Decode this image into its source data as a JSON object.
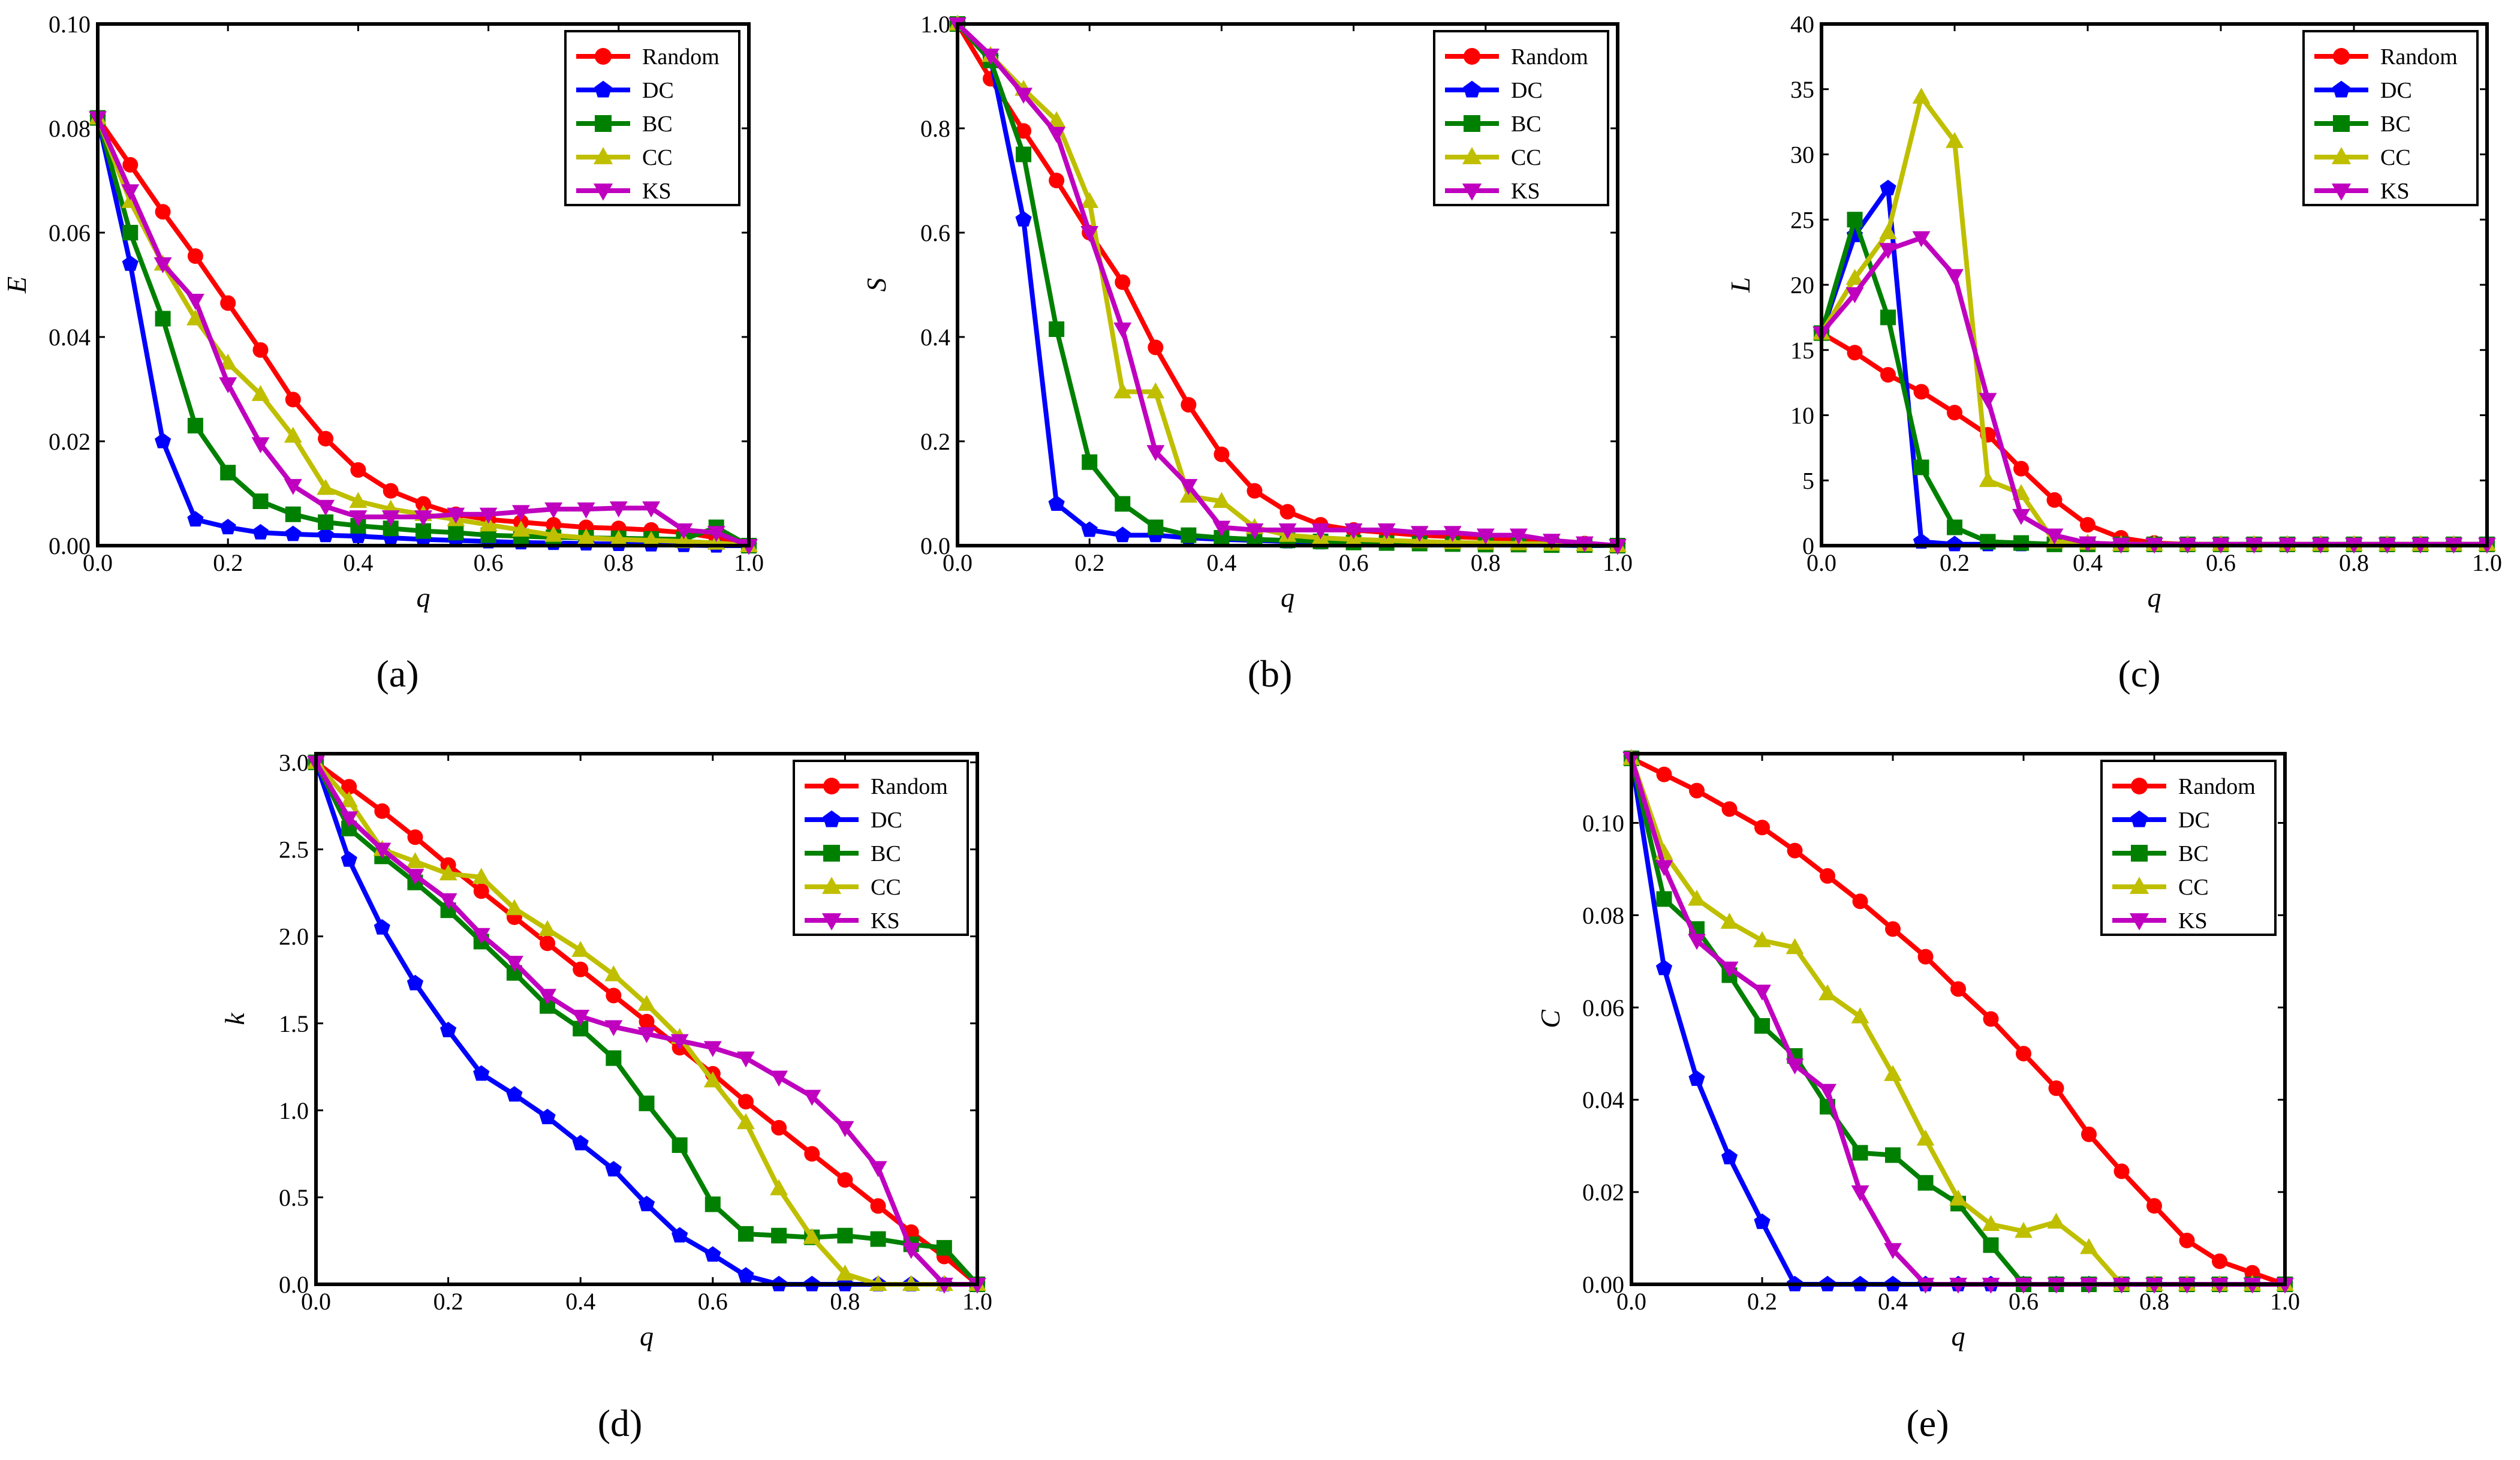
{
  "figure": {
    "series_styles": [
      {
        "name": "Random",
        "color": "#ff0000",
        "marker": "circle"
      },
      {
        "name": "DC",
        "color": "#0000ff",
        "marker": "pentagon"
      },
      {
        "name": "BC",
        "color": "#008000",
        "marker": "square"
      },
      {
        "name": "CC",
        "color": "#bfbf00",
        "marker": "triangle-up"
      },
      {
        "name": "KS",
        "color": "#bf00bf",
        "marker": "triangle-down"
      }
    ]
  },
  "chart_data": [
    {
      "type": "line",
      "panel_label": "(a)",
      "xlabel": "q",
      "ylabel": "E",
      "xlim": [
        0,
        1.0
      ],
      "ylim": [
        0,
        0.1
      ],
      "xticks": [
        "0.0",
        "0.2",
        "0.4",
        "0.6",
        "0.8",
        "1.0"
      ],
      "yticks": [
        "0.00",
        "0.02",
        "0.04",
        "0.06",
        "0.08",
        "0.10"
      ],
      "x": [
        0,
        0.05,
        0.1,
        0.15,
        0.2,
        0.25,
        0.3,
        0.35,
        0.4,
        0.45,
        0.5,
        0.55,
        0.6,
        0.65,
        0.7,
        0.75,
        0.8,
        0.85,
        0.9,
        0.95,
        1.0
      ],
      "series": [
        {
          "name": "Random",
          "values": [
            0.082,
            0.073,
            0.064,
            0.0555,
            0.0465,
            0.0375,
            0.028,
            0.0205,
            0.0145,
            0.0105,
            0.008,
            0.006,
            0.005,
            0.0045,
            0.004,
            0.0035,
            0.0033,
            0.003,
            0.0025,
            0.0015,
            0.0
          ]
        },
        {
          "name": "DC",
          "values": [
            0.082,
            0.054,
            0.02,
            0.005,
            0.0035,
            0.0025,
            0.0022,
            0.002,
            0.0018,
            0.0015,
            0.0012,
            0.001,
            0.0008,
            0.0006,
            0.0005,
            0.0004,
            0.0003,
            0.0002,
            0.0001,
            0.0,
            0.0
          ]
        },
        {
          "name": "BC",
          "values": [
            0.082,
            0.06,
            0.0435,
            0.023,
            0.014,
            0.0085,
            0.006,
            0.0045,
            0.0038,
            0.0033,
            0.0028,
            0.0025,
            0.002,
            0.0018,
            0.0016,
            0.0015,
            0.0014,
            0.0013,
            0.0012,
            0.0035,
            0.0
          ]
        },
        {
          "name": "CC",
          "values": [
            0.082,
            0.066,
            0.054,
            0.0435,
            0.035,
            0.029,
            0.021,
            0.011,
            0.0085,
            0.007,
            0.006,
            0.005,
            0.004,
            0.003,
            0.002,
            0.0015,
            0.0012,
            0.001,
            0.0008,
            0.0005,
            0.0
          ]
        },
        {
          "name": "KS",
          "values": [
            0.082,
            0.068,
            0.054,
            0.047,
            0.031,
            0.0195,
            0.0115,
            0.0075,
            0.0055,
            0.0055,
            0.0055,
            0.006,
            0.006,
            0.0065,
            0.007,
            0.007,
            0.0072,
            0.0072,
            0.003,
            0.0025,
            0.0
          ]
        }
      ]
    },
    {
      "type": "line",
      "panel_label": "(b)",
      "xlabel": "q",
      "ylabel": "S",
      "xlim": [
        0,
        1.0
      ],
      "ylim": [
        0,
        1.0
      ],
      "xticks": [
        "0.0",
        "0.2",
        "0.4",
        "0.6",
        "0.8",
        "1.0"
      ],
      "yticks": [
        "0.0",
        "0.2",
        "0.4",
        "0.6",
        "0.8",
        "1.0"
      ],
      "x": [
        0,
        0.05,
        0.1,
        0.15,
        0.2,
        0.25,
        0.3,
        0.35,
        0.4,
        0.45,
        0.5,
        0.55,
        0.6,
        0.65,
        0.7,
        0.75,
        0.8,
        0.85,
        0.9,
        0.95,
        1.0
      ],
      "series": [
        {
          "name": "Random",
          "values": [
            1.0,
            0.895,
            0.795,
            0.7,
            0.6,
            0.505,
            0.38,
            0.27,
            0.175,
            0.105,
            0.065,
            0.04,
            0.03,
            0.025,
            0.02,
            0.017,
            0.015,
            0.01,
            0.007,
            0.004,
            0.0
          ]
        },
        {
          "name": "DC",
          "values": [
            1.0,
            0.935,
            0.625,
            0.08,
            0.03,
            0.02,
            0.02,
            0.015,
            0.012,
            0.01,
            0.008,
            0.006,
            0.005,
            0.004,
            0.003,
            0.002,
            0.002,
            0.001,
            0.001,
            0.0,
            0.0
          ]
        },
        {
          "name": "BC",
          "values": [
            1.0,
            0.93,
            0.75,
            0.415,
            0.16,
            0.08,
            0.035,
            0.02,
            0.015,
            0.012,
            0.01,
            0.008,
            0.006,
            0.005,
            0.004,
            0.003,
            0.002,
            0.002,
            0.001,
            0.001,
            0.0
          ]
        },
        {
          "name": "CC",
          "values": [
            1.0,
            0.94,
            0.875,
            0.815,
            0.66,
            0.295,
            0.295,
            0.095,
            0.085,
            0.035,
            0.02,
            0.015,
            0.012,
            0.01,
            0.008,
            0.006,
            0.005,
            0.004,
            0.003,
            0.002,
            0.0
          ]
        },
        {
          "name": "KS",
          "values": [
            1.0,
            0.94,
            0.865,
            0.79,
            0.6,
            0.415,
            0.18,
            0.115,
            0.035,
            0.03,
            0.03,
            0.03,
            0.03,
            0.03,
            0.025,
            0.025,
            0.02,
            0.02,
            0.01,
            0.005,
            0.0
          ]
        }
      ]
    },
    {
      "type": "line",
      "panel_label": "(c)",
      "xlabel": "q",
      "ylabel": "L",
      "xlim": [
        0,
        1.0
      ],
      "ylim": [
        0,
        40
      ],
      "xticks": [
        "0.0",
        "0.2",
        "0.4",
        "0.6",
        "0.8",
        "1.0"
      ],
      "yticks": [
        "0",
        "5",
        "10",
        "15",
        "20",
        "25",
        "30",
        "35",
        "40"
      ],
      "x": [
        0,
        0.05,
        0.1,
        0.15,
        0.2,
        0.25,
        0.3,
        0.35,
        0.4,
        0.45,
        0.5,
        0.55,
        0.6,
        0.65,
        0.7,
        0.75,
        0.8,
        0.85,
        0.9,
        0.95,
        1.0
      ],
      "series": [
        {
          "name": "Random",
          "values": [
            16.3,
            14.8,
            13.1,
            11.8,
            10.2,
            8.5,
            5.9,
            3.5,
            1.6,
            0.6,
            0.2,
            0.1,
            0.1,
            0.1,
            0.1,
            0.1,
            0.1,
            0.1,
            0.1,
            0.1,
            0.1
          ]
        },
        {
          "name": "DC",
          "values": [
            16.3,
            23.8,
            27.4,
            0.3,
            0.1,
            0.1,
            0.1,
            0.1,
            0.1,
            0.1,
            0.1,
            0.1,
            0.1,
            0.1,
            0.1,
            0.1,
            0.1,
            0.1,
            0.1,
            0.1,
            0.1
          ]
        },
        {
          "name": "BC",
          "values": [
            16.3,
            25.0,
            17.5,
            6.0,
            1.4,
            0.3,
            0.2,
            0.1,
            0.1,
            0.1,
            0.1,
            0.1,
            0.1,
            0.1,
            0.1,
            0.1,
            0.1,
            0.1,
            0.1,
            0.1,
            0.1
          ]
        },
        {
          "name": "CC",
          "values": [
            16.3,
            20.5,
            24.0,
            34.4,
            31.0,
            5.0,
            4.0,
            0.3,
            0.2,
            0.1,
            0.1,
            0.1,
            0.1,
            0.1,
            0.1,
            0.1,
            0.1,
            0.1,
            0.1,
            0.1,
            0.1
          ]
        },
        {
          "name": "KS",
          "values": [
            16.3,
            19.3,
            22.7,
            23.6,
            20.7,
            11.2,
            2.3,
            0.8,
            0.2,
            0.1,
            0.1,
            0.1,
            0.1,
            0.1,
            0.1,
            0.1,
            0.1,
            0.1,
            0.1,
            0.1,
            0.1
          ]
        }
      ]
    },
    {
      "type": "line",
      "panel_label": "(d)",
      "xlabel": "q",
      "ylabel": "k",
      "xlim": [
        0,
        1.0
      ],
      "ylim": [
        0,
        3.05
      ],
      "xticks": [
        "0.0",
        "0.2",
        "0.4",
        "0.6",
        "0.8",
        "1.0"
      ],
      "yticks": [
        "0.0",
        "0.5",
        "1.0",
        "1.5",
        "2.0",
        "2.5",
        "3.0"
      ],
      "x": [
        0,
        0.05,
        0.1,
        0.15,
        0.2,
        0.25,
        0.3,
        0.35,
        0.4,
        0.45,
        0.5,
        0.55,
        0.6,
        0.65,
        0.7,
        0.75,
        0.8,
        0.85,
        0.9,
        0.95,
        1.0
      ],
      "series": [
        {
          "name": "Random",
          "values": [
            3.0,
            2.86,
            2.72,
            2.57,
            2.41,
            2.26,
            2.11,
            1.96,
            1.81,
            1.66,
            1.51,
            1.36,
            1.21,
            1.05,
            0.9,
            0.75,
            0.6,
            0.45,
            0.3,
            0.16,
            0.0
          ]
        },
        {
          "name": "DC",
          "values": [
            3.0,
            2.44,
            2.05,
            1.73,
            1.46,
            1.21,
            1.09,
            0.96,
            0.81,
            0.66,
            0.46,
            0.28,
            0.17,
            0.05,
            0.0,
            0.0,
            0.0,
            0.0,
            0.0,
            0.0,
            0.0
          ]
        },
        {
          "name": "BC",
          "values": [
            3.0,
            2.62,
            2.46,
            2.31,
            2.15,
            1.97,
            1.79,
            1.6,
            1.47,
            1.3,
            1.04,
            0.8,
            0.46,
            0.29,
            0.28,
            0.27,
            0.28,
            0.26,
            0.23,
            0.21,
            0.0
          ]
        },
        {
          "name": "CC",
          "values": [
            3.0,
            2.78,
            2.5,
            2.43,
            2.36,
            2.34,
            2.16,
            2.04,
            1.92,
            1.78,
            1.61,
            1.42,
            1.17,
            0.93,
            0.55,
            0.27,
            0.06,
            0.0,
            0.0,
            0.0,
            0.0
          ]
        },
        {
          "name": "KS",
          "values": [
            3.0,
            2.68,
            2.5,
            2.35,
            2.21,
            2.01,
            1.85,
            1.66,
            1.54,
            1.48,
            1.44,
            1.4,
            1.36,
            1.3,
            1.19,
            1.08,
            0.9,
            0.67,
            0.2,
            0.0,
            0.0
          ]
        }
      ]
    },
    {
      "type": "line",
      "panel_label": "(e)",
      "xlabel": "q",
      "ylabel": "C",
      "xlim": [
        0,
        1.0
      ],
      "ylim": [
        0,
        0.115
      ],
      "xticks": [
        "0.0",
        "0.2",
        "0.4",
        "0.6",
        "0.8",
        "1.0"
      ],
      "yticks": [
        "0.00",
        "0.02",
        "0.04",
        "0.06",
        "0.08",
        "0.10"
      ],
      "x": [
        0,
        0.05,
        0.1,
        0.15,
        0.2,
        0.25,
        0.3,
        0.35,
        0.4,
        0.45,
        0.5,
        0.55,
        0.6,
        0.65,
        0.7,
        0.75,
        0.8,
        0.85,
        0.9,
        0.95,
        1.0
      ],
      "series": [
        {
          "name": "Random",
          "values": [
            0.114,
            0.1105,
            0.107,
            0.103,
            0.099,
            0.094,
            0.0885,
            0.083,
            0.077,
            0.071,
            0.064,
            0.0575,
            0.05,
            0.0425,
            0.0325,
            0.0245,
            0.017,
            0.0095,
            0.005,
            0.0025,
            0.0
          ]
        },
        {
          "name": "DC",
          "values": [
            0.114,
            0.0685,
            0.0445,
            0.0275,
            0.0135,
            0.0,
            0.0,
            0.0,
            0.0,
            0.0,
            0.0,
            0.0,
            0.0,
            0.0,
            0.0,
            0.0,
            0.0,
            0.0,
            0.0,
            0.0,
            0.0
          ]
        },
        {
          "name": "BC",
          "values": [
            0.114,
            0.0835,
            0.077,
            0.067,
            0.056,
            0.0495,
            0.0385,
            0.0285,
            0.028,
            0.022,
            0.0175,
            0.0085,
            0.0,
            0.0,
            0.0,
            0.0,
            0.0,
            0.0,
            0.0,
            0.0,
            0.0
          ]
        },
        {
          "name": "CC",
          "values": [
            0.114,
            0.0935,
            0.0835,
            0.0785,
            0.0745,
            0.073,
            0.063,
            0.058,
            0.0455,
            0.0315,
            0.0185,
            0.013,
            0.0115,
            0.0135,
            0.008,
            0.0,
            0.0,
            0.0,
            0.0,
            0.0,
            0.0
          ]
        },
        {
          "name": "KS",
          "values": [
            0.114,
            0.0905,
            0.0745,
            0.0685,
            0.0635,
            0.0475,
            0.042,
            0.02,
            0.0075,
            0.0,
            0.0,
            0.0,
            0.0,
            0.0,
            0.0,
            0.0,
            0.0,
            0.0,
            0.0,
            0.0,
            0.0
          ]
        }
      ]
    }
  ]
}
